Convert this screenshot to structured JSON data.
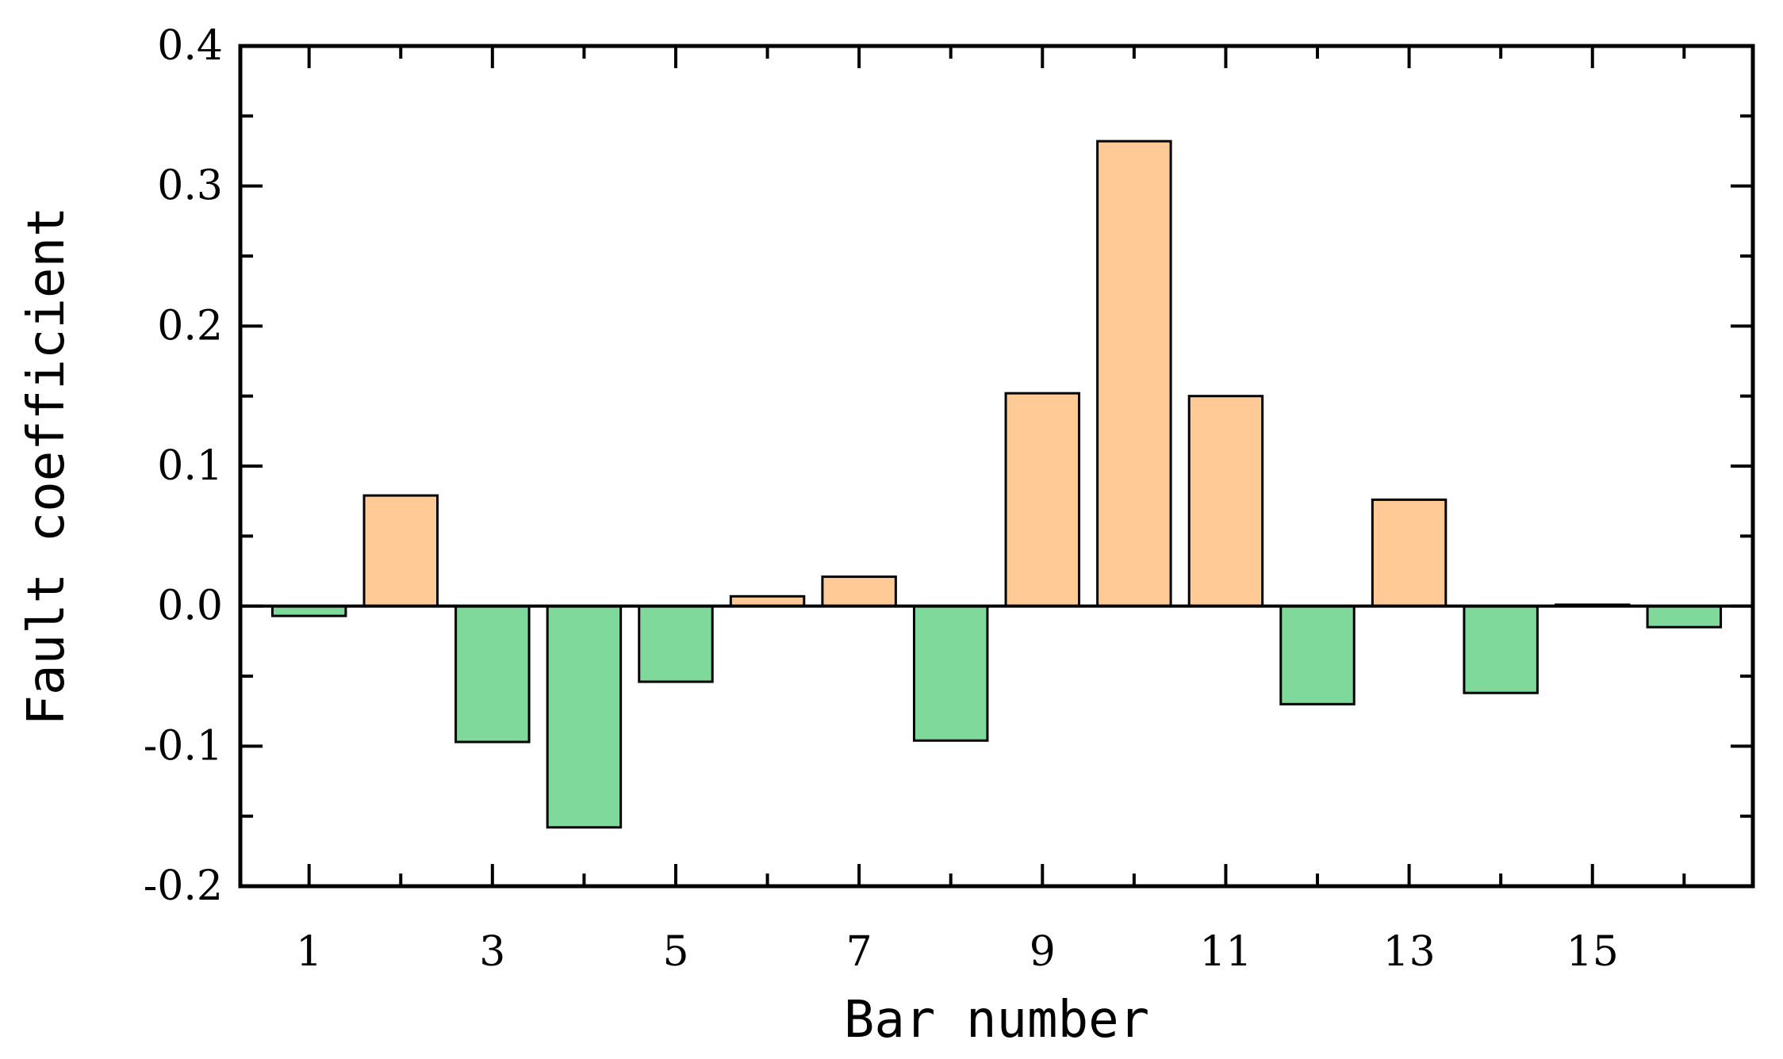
{
  "chart_data": {
    "type": "bar",
    "title": "",
    "xlabel": "Bar number",
    "ylabel": "Fault coefficient",
    "categories": [
      1,
      2,
      3,
      4,
      5,
      6,
      7,
      8,
      9,
      10,
      11,
      12,
      13,
      14,
      15,
      16
    ],
    "values": [
      -0.007,
      0.079,
      -0.097,
      -0.158,
      -0.054,
      0.007,
      0.021,
      -0.096,
      0.152,
      0.332,
      0.15,
      -0.07,
      0.076,
      -0.062,
      0.001,
      -0.015
    ],
    "xticks": [
      "1",
      "3",
      "5",
      "7",
      "9",
      "11",
      "13",
      "15"
    ],
    "yticks": [
      "-0.2",
      "-0.1",
      "0.0",
      "0.1",
      "0.2",
      "0.3",
      "0.4"
    ],
    "ylim": [
      -0.2,
      0.4
    ],
    "grid": false,
    "colors": {
      "positive": "#FFCA96",
      "negative": "#7FD99B",
      "edge": "#000000"
    }
  }
}
